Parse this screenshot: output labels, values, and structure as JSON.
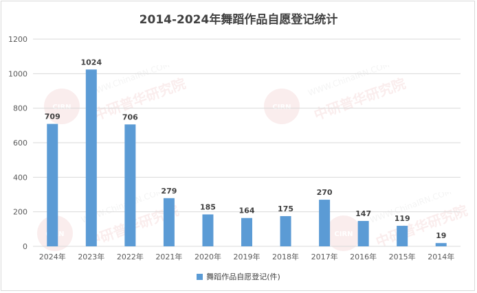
{
  "colors": {
    "bar": "#5b9bd5",
    "grid": "#d9d9d9",
    "watermark": "#e8a0a0"
  },
  "watermark": {
    "url_text": "WWW.ChinaIRN.COM",
    "org_text": "中研普华研究院",
    "logo_text": "CIRN"
  },
  "chart_data": {
    "type": "bar",
    "title": "2014-2024年舞蹈作品自愿登记统计",
    "categories": [
      "2024年",
      "2023年",
      "2022年",
      "2021年",
      "2020年",
      "2019年",
      "2018年",
      "2017年",
      "2016年",
      "2015年",
      "2014年"
    ],
    "series": [
      {
        "name": "舞蹈作品自愿登记(件)",
        "values": [
          709,
          1024,
          706,
          279,
          185,
          164,
          175,
          270,
          147,
          119,
          19
        ]
      }
    ],
    "ylim": [
      0,
      1200
    ],
    "yticks": [
      0,
      200,
      400,
      600,
      800,
      1000,
      1200
    ],
    "grid": true,
    "legend_position": "bottom",
    "data_labels": true
  }
}
